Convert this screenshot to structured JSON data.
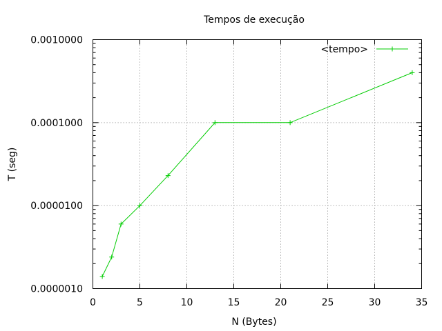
{
  "chart_data": {
    "type": "line",
    "title": "Tempos de execução",
    "xlabel": "N (Bytes)",
    "ylabel": "T (seg)",
    "xlim": [
      0,
      35
    ],
    "ylim": [
      1e-06,
      0.001
    ],
    "y_scale": "log",
    "grid": true,
    "legend_position": "top-right",
    "x_ticks": [
      0,
      5,
      10,
      15,
      20,
      25,
      30,
      35
    ],
    "x_tick_labels": [
      "0",
      "5",
      "10",
      "15",
      "20",
      "25",
      "30",
      "35"
    ],
    "y_ticks": [
      1e-06,
      1e-05,
      0.0001,
      0.001
    ],
    "y_tick_labels": [
      "0.0000010",
      "0.0000100",
      "0.0001000",
      "0.0010000"
    ],
    "series": [
      {
        "name": "<tempo>",
        "color": "#00cc00",
        "marker": "plus",
        "x": [
          1,
          2,
          3,
          5,
          8,
          13,
          21,
          34
        ],
        "y": [
          1.4e-06,
          2.4e-06,
          6e-06,
          1e-05,
          2.3e-05,
          0.0001,
          0.0001,
          0.0004
        ]
      }
    ]
  }
}
